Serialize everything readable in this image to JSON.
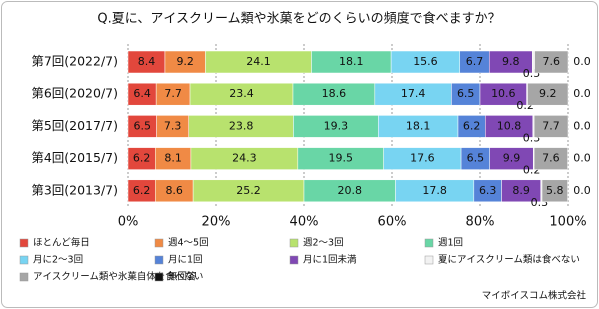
{
  "chart_data": {
    "type": "stacked_bar_horizontal",
    "title": "Q.夏に、アイスクリーム類や氷菓をどのくらいの頻度で食べますか？",
    "source": "マイボイスコム株式会社",
    "categories": [
      "第7回(2022/7)",
      "第6回(2020/7)",
      "第5回(2017/7)",
      "第4回(2015/7)",
      "第3回(2013/7)"
    ],
    "series": [
      {
        "name": "ほとんど毎日",
        "color": "#e2473c",
        "values": [
          8.4,
          6.4,
          6.5,
          6.2,
          6.2
        ]
      },
      {
        "name": "週4～5回",
        "color": "#f08a45",
        "values": [
          9.2,
          7.7,
          7.3,
          8.1,
          8.6
        ]
      },
      {
        "name": "週2～3回",
        "color": "#b8e26e",
        "values": [
          24.1,
          23.4,
          23.8,
          24.3,
          25.2
        ]
      },
      {
        "name": "週1回",
        "color": "#69d6a6",
        "values": [
          18.1,
          18.6,
          19.3,
          19.5,
          20.8
        ]
      },
      {
        "name": "月に2～3回",
        "color": "#78d4f2",
        "values": [
          15.6,
          17.4,
          18.1,
          17.6,
          17.8
        ]
      },
      {
        "name": "月に1回",
        "color": "#5583d8",
        "values": [
          6.7,
          6.5,
          6.2,
          6.5,
          6.3
        ]
      },
      {
        "name": "月に1回未満",
        "color": "#8048b4",
        "values": [
          9.8,
          10.6,
          10.8,
          9.9,
          8.9
        ]
      },
      {
        "name": "夏にアイスクリーム類は食べない",
        "color": "#f2f2f2",
        "values": [
          0.5,
          0.2,
          0.3,
          0.2,
          0.3
        ]
      },
      {
        "name": "アイスクリーム類や氷菓自体を食べない",
        "color": "#a6a6a6",
        "values": [
          7.6,
          9.2,
          7.7,
          7.6,
          5.8
        ]
      },
      {
        "name": "無回答",
        "color": "#111111",
        "values": [
          0,
          0,
          0,
          0,
          0
        ],
        "value_labels": [
          "0.0",
          "0.0",
          "0.0",
          "0.0",
          "0.0"
        ]
      }
    ],
    "xlim": [
      0,
      100
    ],
    "xticks": [
      {
        "value": 0,
        "label": "0%"
      },
      {
        "value": 20,
        "label": "20%"
      },
      {
        "value": 40,
        "label": "40%"
      },
      {
        "value": 60,
        "label": "60%"
      },
      {
        "value": 80,
        "label": "80%"
      },
      {
        "value": 100,
        "label": "100%"
      }
    ],
    "grid": true
  }
}
